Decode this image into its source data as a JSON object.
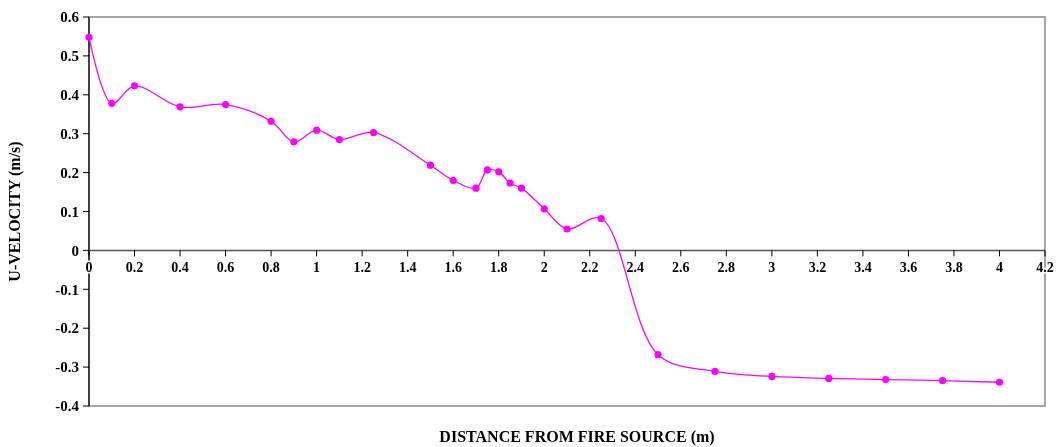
{
  "chart_data": {
    "type": "line",
    "xlabel": "DISTANCE FROM FIRE SOURCE (m)",
    "ylabel": "U-VELOCITY (m/s)",
    "x": [
      0,
      0.1,
      0.2,
      0.4,
      0.6,
      0.8,
      0.9,
      1.0,
      1.1,
      1.25,
      1.5,
      1.6,
      1.7,
      1.75,
      1.8,
      1.85,
      1.9,
      2.0,
      2.1,
      2.25,
      2.5,
      2.75,
      3.0,
      3.25,
      3.5,
      3.75,
      4.0
    ],
    "series": [
      {
        "color": "#ff00ff",
        "values": [
          0.548,
          0.378,
          0.423,
          0.369,
          0.375,
          0.332,
          0.279,
          0.309,
          0.285,
          0.303,
          0.219,
          0.18,
          0.16,
          0.207,
          0.202,
          0.173,
          0.16,
          0.107,
          0.055,
          0.082,
          -0.268,
          -0.311,
          -0.324,
          -0.329,
          -0.332,
          -0.335,
          -0.339
        ]
      }
    ],
    "xlim": [
      0,
      4.2
    ],
    "xticks": [
      0,
      0.2,
      0.4,
      0.6,
      0.8,
      1,
      1.2,
      1.4,
      1.6,
      1.8,
      2,
      2.2,
      2.4,
      2.6,
      2.8,
      3,
      3.2,
      3.4,
      3.6,
      3.8,
      4,
      4.2
    ],
    "ylim": [
      -0.4,
      0.6
    ],
    "yticks": [
      -0.4,
      -0.3,
      -0.2,
      -0.1,
      0,
      0.1,
      0.2,
      0.3,
      0.4,
      0.5,
      0.6
    ],
    "marker": "circle",
    "line_style": "solid"
  }
}
